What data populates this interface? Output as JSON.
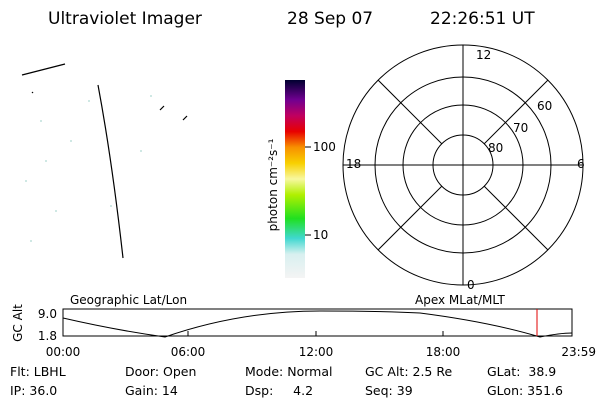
{
  "header": {
    "instrument": "Ultraviolet Imager",
    "date": "28 Sep 07",
    "time": "22:26:51 UT"
  },
  "colorbar": {
    "label": "photon cm⁻²s⁻¹",
    "ticks": [
      "100",
      "10"
    ]
  },
  "polar": {
    "mlt": [
      "12",
      "18",
      "6",
      "0"
    ],
    "mlat": [
      "60",
      "70",
      "80"
    ]
  },
  "timeline": {
    "left_title": "Geographic Lat/Lon",
    "right_title": "Apex MLat/MLT",
    "ylabel": "GC Alt",
    "yticks": [
      "9.0",
      "1.8"
    ],
    "xticks": [
      "00:00",
      "06:00",
      "12:00",
      "18:00",
      "23:59"
    ]
  },
  "footer": {
    "rows": [
      [
        "Flt: LBHL",
        "Door: Open",
        "Mode: Normal",
        "GC Alt: 2.5 Re",
        "GLat:  38.9"
      ],
      [
        "IP: 36.0",
        "Gain: 14",
        "Dsp:     4.2",
        "Seq: 39",
        "GLon: 351.6"
      ]
    ]
  }
}
